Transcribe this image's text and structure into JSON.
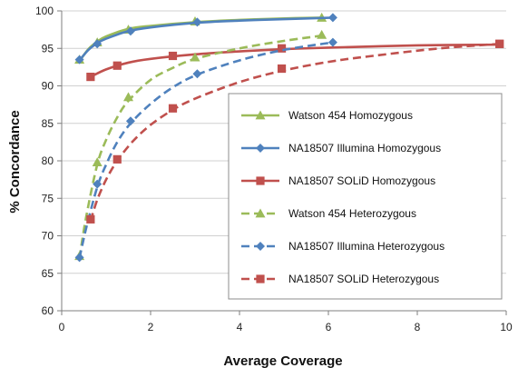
{
  "chart_data": {
    "type": "line",
    "xlabel": "Average Coverage",
    "ylabel": "% Concordance",
    "xlim": [
      0,
      10
    ],
    "ylim": [
      60,
      100
    ],
    "xticks": [
      0,
      2,
      4,
      6,
      8,
      10
    ],
    "yticks": [
      60,
      65,
      70,
      75,
      80,
      85,
      90,
      95,
      100
    ],
    "grid": "horizontal",
    "legend_position": "inside-right",
    "series": [
      {
        "name": "Watson 454 Homozygous",
        "color": "#9BBB59",
        "marker": "triangle",
        "dash": "solid",
        "points": [
          [
            0.4,
            93.5
          ],
          [
            0.8,
            95.8
          ],
          [
            1.5,
            97.5
          ],
          [
            3.0,
            98.6
          ],
          [
            5.85,
            99.1
          ]
        ],
        "curve": [
          [
            0.4,
            93.3
          ],
          [
            0.6,
            94.9
          ],
          [
            0.8,
            95.9
          ],
          [
            1.0,
            96.6
          ],
          [
            1.5,
            97.6
          ],
          [
            2.0,
            98.0
          ],
          [
            3.0,
            98.5
          ],
          [
            4.0,
            98.8
          ],
          [
            5.0,
            99.0
          ],
          [
            5.85,
            99.1
          ]
        ]
      },
      {
        "name": "NA18507 Illumina Homozygous",
        "color": "#4F81BD",
        "marker": "diamond",
        "dash": "solid",
        "points": [
          [
            0.4,
            93.5
          ],
          [
            0.8,
            95.6
          ],
          [
            1.55,
            97.3
          ],
          [
            3.05,
            98.5
          ],
          [
            6.1,
            99.1
          ]
        ],
        "curve": [
          [
            0.4,
            93.4
          ],
          [
            0.6,
            94.8
          ],
          [
            0.8,
            95.7
          ],
          [
            1.0,
            96.3
          ],
          [
            1.5,
            97.3
          ],
          [
            2.0,
            97.8
          ],
          [
            3.0,
            98.4
          ],
          [
            4.0,
            98.7
          ],
          [
            5.0,
            98.9
          ],
          [
            6.1,
            99.1
          ]
        ]
      },
      {
        "name": "NA18507 SOLiD Homozygous",
        "color": "#C0504D",
        "marker": "square",
        "dash": "solid",
        "points": [
          [
            0.65,
            91.2
          ],
          [
            1.25,
            92.7
          ],
          [
            2.5,
            94.0
          ],
          [
            4.95,
            95.0
          ],
          [
            9.85,
            95.6
          ]
        ],
        "curve": [
          [
            0.65,
            91.2
          ],
          [
            1.0,
            92.2
          ],
          [
            1.5,
            93.1
          ],
          [
            2.0,
            93.6
          ],
          [
            3.0,
            94.2
          ],
          [
            4.0,
            94.6
          ],
          [
            5.0,
            94.9
          ],
          [
            6.0,
            95.1
          ],
          [
            8.0,
            95.4
          ],
          [
            9.85,
            95.5
          ]
        ]
      },
      {
        "name": "Watson 454 Heterozygous",
        "color": "#9BBB59",
        "marker": "triangle",
        "dash": "dashed",
        "points": [
          [
            0.4,
            67.3
          ],
          [
            0.8,
            79.8
          ],
          [
            1.5,
            88.5
          ],
          [
            3.0,
            93.8
          ],
          [
            5.85,
            96.8
          ]
        ],
        "curve": [
          [
            0.4,
            67.0
          ],
          [
            0.55,
            72.5
          ],
          [
            0.8,
            79.5
          ],
          [
            1.0,
            82.8
          ],
          [
            1.25,
            85.8
          ],
          [
            1.5,
            88.0
          ],
          [
            2.0,
            90.8
          ],
          [
            2.5,
            92.4
          ],
          [
            3.0,
            93.6
          ],
          [
            4.0,
            95.0
          ],
          [
            5.0,
            96.0
          ],
          [
            5.85,
            96.7
          ]
        ]
      },
      {
        "name": "NA18507 Illumina Heterozygous",
        "color": "#4F81BD",
        "marker": "diamond",
        "dash": "dashed",
        "points": [
          [
            0.4,
            67.1
          ],
          [
            0.8,
            76.9
          ],
          [
            1.55,
            85.3
          ],
          [
            3.05,
            91.6
          ],
          [
            6.1,
            95.8
          ]
        ],
        "curve": [
          [
            0.4,
            67.0
          ],
          [
            0.55,
            71.0
          ],
          [
            0.8,
            76.5
          ],
          [
            1.0,
            79.5
          ],
          [
            1.25,
            82.5
          ],
          [
            1.55,
            85.0
          ],
          [
            2.0,
            87.6
          ],
          [
            2.5,
            89.8
          ],
          [
            3.05,
            91.5
          ],
          [
            4.0,
            93.4
          ],
          [
            5.0,
            94.8
          ],
          [
            6.1,
            95.8
          ]
        ]
      },
      {
        "name": "NA18507 SOLiD Heterozygous",
        "color": "#C0504D",
        "marker": "square",
        "dash": "dashed",
        "points": [
          [
            0.65,
            72.2
          ],
          [
            1.25,
            80.2
          ],
          [
            2.5,
            87.0
          ],
          [
            4.95,
            92.3
          ],
          [
            9.85,
            95.6
          ]
        ],
        "curve": [
          [
            0.65,
            72.0
          ],
          [
            0.8,
            74.8
          ],
          [
            1.0,
            77.5
          ],
          [
            1.25,
            80.0
          ],
          [
            1.6,
            82.6
          ],
          [
            2.0,
            84.8
          ],
          [
            2.5,
            86.8
          ],
          [
            3.0,
            88.3
          ],
          [
            4.0,
            90.5
          ],
          [
            4.95,
            92.0
          ],
          [
            6.0,
            93.2
          ],
          [
            7.0,
            94.0
          ],
          [
            8.5,
            95.0
          ],
          [
            9.85,
            95.6
          ]
        ]
      }
    ]
  }
}
